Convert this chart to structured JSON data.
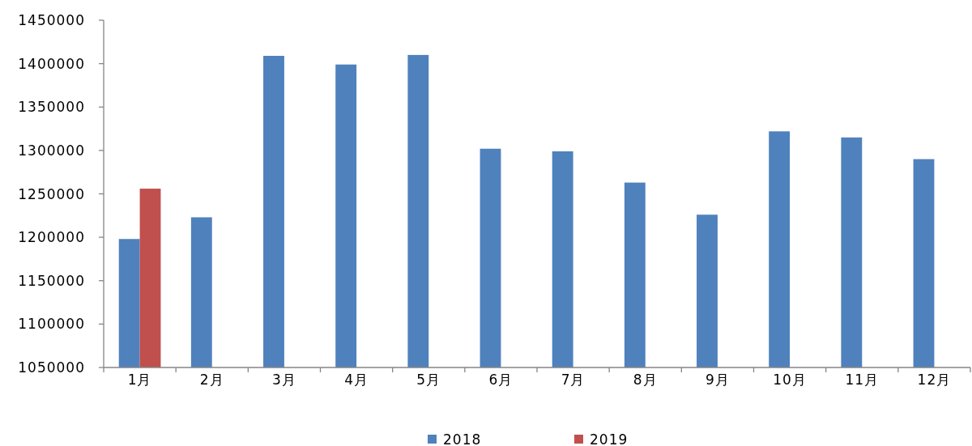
{
  "chart_data": {
    "type": "bar",
    "categories": [
      "1月",
      "2月",
      "3月",
      "4月",
      "5月",
      "6月",
      "7月",
      "8月",
      "9月",
      "10月",
      "11月",
      "12月"
    ],
    "series": [
      {
        "name": "2018",
        "color": "#4f81bd",
        "values": [
          1198000,
          1223000,
          1409000,
          1399000,
          1410000,
          1302000,
          1299000,
          1263000,
          1226000,
          1322000,
          1315000,
          1290000
        ]
      },
      {
        "name": "2019",
        "color": "#c0504d",
        "values": [
          1256000,
          null,
          null,
          null,
          null,
          null,
          null,
          null,
          null,
          null,
          null,
          null
        ]
      }
    ],
    "ylim": [
      1050000,
      1450000
    ],
    "yticks": [
      1050000,
      1100000,
      1150000,
      1200000,
      1250000,
      1300000,
      1350000,
      1400000,
      1450000
    ],
    "legend": "bottom"
  }
}
